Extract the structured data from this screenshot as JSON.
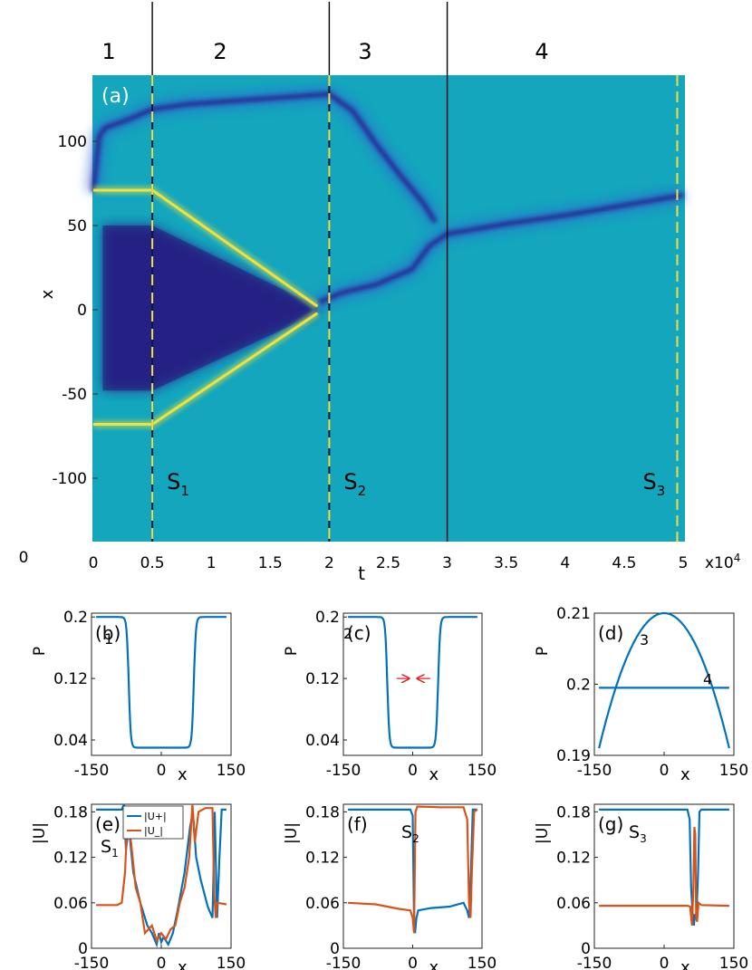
{
  "regions": [
    "1",
    "2",
    "3",
    "4"
  ],
  "chart_data": [
    {
      "id": "a",
      "type": "heatmap",
      "panel_label": "(a)",
      "xlabel": "t",
      "ylabel": "x",
      "x_exponent": "x10",
      "x_exponent_sup": "4",
      "corner_zero": "0",
      "xlim": [
        0,
        5
      ],
      "ylim": [
        -140,
        140
      ],
      "xticks": [
        0,
        0.5,
        1,
        1.5,
        2,
        2.5,
        3,
        3.5,
        4,
        4.5,
        5
      ],
      "xtick_labels": [
        "0",
        "0.5",
        "1",
        "1.5",
        "2",
        "2.5",
        "3",
        "3.5",
        "4",
        "4.5",
        "5"
      ],
      "yticks": [
        100,
        50,
        0,
        -50,
        -100
      ],
      "ytick_labels": [
        "100",
        "50",
        "0",
        "-50",
        "-100"
      ],
      "region_boundaries": [
        0.5,
        2.0,
        3.0
      ],
      "snapshot_lines": [
        {
          "t": 0.5,
          "name": "S",
          "sub": "1"
        },
        {
          "t": 2.0,
          "name": "S",
          "sub": "2"
        },
        {
          "t": 4.95,
          "name": "S",
          "sub": "3"
        }
      ],
      "background_color": "#14a6bd",
      "dark_color": "#2b1a8c",
      "bright_color": "#f0e040",
      "dark_tracks": [
        {
          "name": "upper-wall",
          "points": [
            [
              0,
              70
            ],
            [
              0.05,
              103
            ],
            [
              0.1,
              108
            ],
            [
              0.3,
              113
            ],
            [
              0.5,
              119
            ],
            [
              0.8,
              122
            ],
            [
              1.2,
              124
            ],
            [
              2.0,
              128
            ],
            [
              2.2,
              118
            ],
            [
              2.4,
              98
            ],
            [
              2.6,
              80
            ],
            [
              2.8,
              63
            ],
            [
              2.9,
              52
            ]
          ]
        },
        {
          "name": "center-rise",
          "points": [
            [
              1.9,
              4
            ],
            [
              2.1,
              10
            ],
            [
              2.4,
              15
            ],
            [
              2.7,
              24
            ],
            [
              2.85,
              38
            ],
            [
              3.0,
              45
            ],
            [
              3.5,
              51
            ],
            [
              4.0,
              56
            ],
            [
              4.5,
              62
            ],
            [
              5.0,
              68
            ]
          ]
        }
      ],
      "bright_tracks": [
        {
          "name": "upper-yellow",
          "points": [
            [
              0,
              71
            ],
            [
              0.5,
              71
            ],
            [
              1.9,
              2
            ]
          ]
        },
        {
          "name": "lower-yellow",
          "points": [
            [
              0,
              -68
            ],
            [
              0.5,
              -68
            ],
            [
              1.9,
              -2
            ]
          ]
        }
      ],
      "dark_region": [
        [
          0.08,
          50
        ],
        [
          0.5,
          50
        ],
        [
          1.9,
          2
        ],
        [
          1.9,
          -2
        ],
        [
          0.5,
          -48
        ],
        [
          0.08,
          -48
        ]
      ]
    },
    {
      "id": "b",
      "type": "line",
      "panel_label": "(b)",
      "curve_label": "1",
      "ylabel": "P",
      "xlabel": "x",
      "xlim": [
        -150,
        150
      ],
      "ylim": [
        0.02,
        0.205
      ],
      "xtick_labels": [
        "-150",
        "0",
        "150"
      ],
      "xticks": [
        -150,
        0,
        150
      ],
      "ytick_labels": [
        "0.2",
        "0.12",
        "0.04"
      ],
      "yticks": [
        0.2,
        0.12,
        0.04
      ],
      "series": [
        {
          "kind": "well",
          "high": 0.2,
          "low": 0.03,
          "edges": [
            -70,
            70
          ],
          "xrange": [
            -140,
            140
          ]
        }
      ]
    },
    {
      "id": "c",
      "type": "line",
      "panel_label": "(c)",
      "curve_label": "2",
      "ylabel": "P",
      "xlabel": "x",
      "xlim": [
        -150,
        150
      ],
      "ylim": [
        0.02,
        0.205
      ],
      "xtick_labels": [
        "-150",
        "0",
        "150"
      ],
      "xticks": [
        -150,
        0,
        150
      ],
      "ytick_labels": [
        "0.2",
        "0.12",
        "0.04"
      ],
      "yticks": [
        0.2,
        0.12,
        0.04
      ],
      "arrows": true,
      "series": [
        {
          "kind": "well",
          "high": 0.2,
          "low": 0.03,
          "edges": [
            -55,
            55
          ],
          "xrange": [
            -140,
            140
          ]
        }
      ]
    },
    {
      "id": "d",
      "type": "line",
      "panel_label": "(d)",
      "curve_label": "3",
      "curve_label_2": "4",
      "ylabel": "P",
      "xlabel": "x",
      "xlim": [
        -150,
        150
      ],
      "ylim": [
        0.19,
        0.21
      ],
      "xtick_labels": [
        "-150",
        "0",
        "150"
      ],
      "xticks": [
        -150,
        0,
        150
      ],
      "ytick_labels": [
        "0.21",
        "0.2",
        "0.19"
      ],
      "yticks": [
        0.21,
        0.2,
        0.19
      ],
      "series": [
        {
          "kind": "parabola",
          "peak": 0.21,
          "edge": 0.191,
          "xrange": [
            -140,
            140
          ]
        },
        {
          "kind": "flat",
          "value": 0.1995,
          "xrange": [
            -140,
            140
          ]
        }
      ]
    },
    {
      "id": "e",
      "type": "line",
      "panel_label": "(e)",
      "snap_name": "S",
      "snap_sub": "1",
      "ylabel": "|U|",
      "xlabel": "x",
      "xlim": [
        -150,
        150
      ],
      "ylim": [
        0,
        0.19
      ],
      "xtick_labels": [
        "-150",
        "0",
        "150"
      ],
      "xticks": [
        -150,
        0,
        150
      ],
      "ytick_labels": [
        "0.18",
        "0.12",
        "0.06",
        "0"
      ],
      "yticks": [
        0.18,
        0.12,
        0.06,
        0
      ],
      "legend": [
        "|U+|",
        "|U_|"
      ],
      "series": [
        {
          "name": "|U+|",
          "color": "#0072bd",
          "points": [
            [
              -140,
              0.183
            ],
            [
              -85,
              0.183
            ],
            [
              -80,
              0.19
            ],
            [
              -76,
              0.13
            ],
            [
              -70,
              0.16
            ],
            [
              -60,
              0.1
            ],
            [
              -45,
              0.06
            ],
            [
              -30,
              0.03
            ],
            [
              -20,
              0.02
            ],
            [
              -10,
              0.005
            ],
            [
              -5,
              0.02
            ],
            [
              0,
              0.008
            ],
            [
              5,
              0.015
            ],
            [
              15,
              0.005
            ],
            [
              25,
              0.02
            ],
            [
              35,
              0.05
            ],
            [
              50,
              0.1
            ],
            [
              62,
              0.16
            ],
            [
              68,
              0.18
            ],
            [
              75,
              0.12
            ],
            [
              85,
              0.09
            ],
            [
              100,
              0.055
            ],
            [
              110,
              0.04
            ],
            [
              112,
              0.09
            ],
            [
              115,
              0.18
            ],
            [
              120,
              0.04
            ],
            [
              125,
              0.12
            ],
            [
              130,
              0.183
            ],
            [
              140,
              0.183
            ]
          ]
        },
        {
          "name": "|U_|",
          "color": "#d95319",
          "points": [
            [
              -140,
              0.057
            ],
            [
              -95,
              0.057
            ],
            [
              -85,
              0.06
            ],
            [
              -78,
              0.1
            ],
            [
              -73,
              0.17
            ],
            [
              -65,
              0.14
            ],
            [
              -55,
              0.08
            ],
            [
              -45,
              0.06
            ],
            [
              -35,
              0.02
            ],
            [
              -20,
              0.03
            ],
            [
              -10,
              0.01
            ],
            [
              0,
              0.02
            ],
            [
              10,
              0.012
            ],
            [
              20,
              0.025
            ],
            [
              30,
              0.03
            ],
            [
              40,
              0.06
            ],
            [
              50,
              0.08
            ],
            [
              60,
              0.12
            ],
            [
              67,
              0.19
            ],
            [
              72,
              0.14
            ],
            [
              80,
              0.18
            ],
            [
              95,
              0.185
            ],
            [
              110,
              0.185
            ],
            [
              114,
              0.07
            ],
            [
              117,
              0.04
            ],
            [
              120,
              0.06
            ],
            [
              140,
              0.058
            ]
          ]
        }
      ]
    },
    {
      "id": "f",
      "type": "line",
      "panel_label": "(f)",
      "snap_name": "S",
      "snap_sub": "2",
      "ylabel": "|U|",
      "xlabel": "x",
      "xlim": [
        -150,
        150
      ],
      "ylim": [
        0,
        0.19
      ],
      "xtick_labels": [
        "-150",
        "0",
        "150"
      ],
      "xticks": [
        -150,
        0,
        150
      ],
      "ytick_labels": [
        "0.18",
        "0.12",
        "0.06",
        "0"
      ],
      "yticks": [
        0.18,
        0.12,
        0.06,
        0
      ],
      "series": [
        {
          "name": "|U+|",
          "color": "#0072bd",
          "points": [
            [
              -140,
              0.183
            ],
            [
              -5,
              0.183
            ],
            [
              0,
              0.175
            ],
            [
              3,
              0.04
            ],
            [
              5,
              0.02
            ],
            [
              8,
              0.04
            ],
            [
              12,
              0.05
            ],
            [
              40,
              0.053
            ],
            [
              80,
              0.055
            ],
            [
              110,
              0.06
            ],
            [
              118,
              0.05
            ],
            [
              122,
              0.04
            ],
            [
              126,
              0.1
            ],
            [
              130,
              0.183
            ],
            [
              140,
              0.183
            ]
          ]
        },
        {
          "name": "|U_|",
          "color": "#d95319",
          "points": [
            [
              -140,
              0.06
            ],
            [
              -80,
              0.058
            ],
            [
              -30,
              0.052
            ],
            [
              -5,
              0.05
            ],
            [
              0,
              0.04
            ],
            [
              3,
              0.02
            ],
            [
              6,
              0.18
            ],
            [
              10,
              0.187
            ],
            [
              60,
              0.186
            ],
            [
              110,
              0.186
            ],
            [
              118,
              0.17
            ],
            [
              122,
              0.06
            ],
            [
              125,
              0.04
            ],
            [
              128,
              0.1
            ],
            [
              133,
              0.18
            ],
            [
              140,
              0.183
            ]
          ]
        }
      ]
    },
    {
      "id": "g",
      "type": "line",
      "panel_label": "(g)",
      "snap_name": "S",
      "snap_sub": "3",
      "ylabel": "|U|",
      "xlabel": "x",
      "xlim": [
        -150,
        150
      ],
      "ylim": [
        0,
        0.19
      ],
      "xtick_labels": [
        "-150",
        "0",
        "150"
      ],
      "xticks": [
        -150,
        0,
        150
      ],
      "ytick_labels": [
        "0.18",
        "0.12",
        "0.06",
        "0"
      ],
      "yticks": [
        0.18,
        0.12,
        0.06,
        0
      ],
      "series": [
        {
          "name": "|U+|",
          "color": "#0072bd",
          "points": [
            [
              -140,
              0.183
            ],
            [
              50,
              0.183
            ],
            [
              55,
              0.17
            ],
            [
              58,
              0.08
            ],
            [
              62,
              0.04
            ],
            [
              64,
              0.03
            ],
            [
              66,
              0.045
            ],
            [
              68,
              0.04
            ],
            [
              70,
              0.05
            ],
            [
              73,
              0.1
            ],
            [
              76,
              0.18
            ],
            [
              80,
              0.183
            ],
            [
              140,
              0.183
            ]
          ]
        },
        {
          "name": "|U_|",
          "color": "#d95319",
          "points": [
            [
              -140,
              0.056
            ],
            [
              50,
              0.056
            ],
            [
              56,
              0.055
            ],
            [
              60,
              0.03
            ],
            [
              63,
              0.08
            ],
            [
              65,
              0.16
            ],
            [
              67,
              0.15
            ],
            [
              69,
              0.04
            ],
            [
              71,
              0.035
            ],
            [
              74,
              0.06
            ],
            [
              80,
              0.057
            ],
            [
              140,
              0.056
            ]
          ]
        }
      ]
    }
  ]
}
